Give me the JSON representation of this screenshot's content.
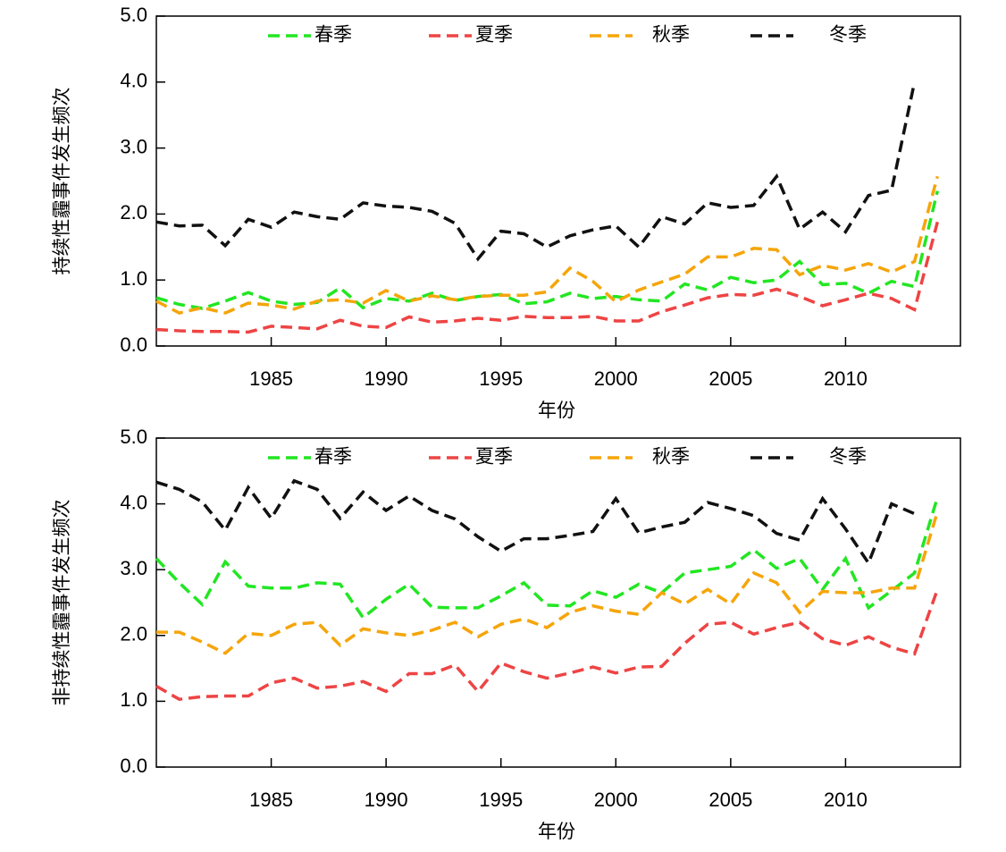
{
  "chart_data": [
    {
      "type": "line",
      "ylabel": "持续性霾事件发生频次",
      "xlabel": "年份",
      "x": [
        1980,
        1981,
        1982,
        1983,
        1984,
        1985,
        1986,
        1987,
        1988,
        1989,
        1990,
        1991,
        1992,
        1993,
        1994,
        1995,
        1996,
        1997,
        1998,
        1999,
        2000,
        2001,
        2002,
        2003,
        2004,
        2005,
        2006,
        2007,
        2008,
        2009,
        2010,
        2011,
        2012,
        2013,
        2014
      ],
      "xlim": [
        1980,
        2015
      ],
      "xticks": [
        1985,
        1990,
        1995,
        2000,
        2005,
        2010
      ],
      "ylim": [
        0,
        5
      ],
      "yticks": [
        {
          "value": 0,
          "label": "0.0"
        },
        {
          "value": 1,
          "label": "1.0"
        },
        {
          "value": 2,
          "label": "2.0"
        },
        {
          "value": 3,
          "label": "3.0"
        },
        {
          "value": 4,
          "label": "4.0"
        },
        {
          "value": 5,
          "label": "5.0"
        }
      ],
      "grid": false,
      "legend": "top",
      "series": [
        {
          "name": "春季",
          "color": "#22e622",
          "values": [
            0.73,
            0.63,
            0.57,
            0.68,
            0.81,
            0.68,
            0.63,
            0.66,
            0.88,
            0.58,
            0.72,
            0.68,
            0.8,
            0.69,
            0.75,
            0.78,
            0.64,
            0.67,
            0.8,
            0.72,
            0.75,
            0.7,
            0.68,
            0.94,
            0.85,
            1.04,
            0.96,
            1.0,
            1.28,
            0.93,
            0.95,
            0.8,
            0.98,
            0.9,
            2.35
          ]
        },
        {
          "name": "夏季",
          "color": "#ee4444",
          "values": [
            0.25,
            0.23,
            0.22,
            0.22,
            0.21,
            0.3,
            0.28,
            0.26,
            0.39,
            0.3,
            0.28,
            0.44,
            0.36,
            0.38,
            0.42,
            0.39,
            0.45,
            0.43,
            0.43,
            0.45,
            0.38,
            0.38,
            0.52,
            0.62,
            0.73,
            0.78,
            0.77,
            0.86,
            0.75,
            0.61,
            0.7,
            0.8,
            0.72,
            0.55,
            1.88
          ]
        },
        {
          "name": "秋季",
          "color": "#f5a50a",
          "values": [
            0.68,
            0.5,
            0.58,
            0.5,
            0.65,
            0.62,
            0.56,
            0.68,
            0.7,
            0.65,
            0.84,
            0.68,
            0.76,
            0.7,
            0.75,
            0.77,
            0.77,
            0.82,
            1.18,
            0.98,
            0.67,
            0.85,
            0.97,
            1.09,
            1.35,
            1.35,
            1.48,
            1.46,
            1.08,
            1.22,
            1.15,
            1.25,
            1.12,
            1.28,
            2.57
          ]
        },
        {
          "name": "冬季",
          "color": "#111111",
          "values": [
            1.88,
            1.82,
            1.83,
            1.52,
            1.92,
            1.8,
            2.03,
            1.96,
            1.92,
            2.17,
            2.12,
            2.1,
            2.04,
            1.86,
            1.32,
            1.74,
            1.7,
            1.5,
            1.67,
            1.76,
            1.82,
            1.5,
            1.96,
            1.85,
            2.17,
            2.1,
            2.13,
            2.57,
            1.77,
            2.03,
            1.73,
            2.28,
            2.36,
            4.0,
            null
          ]
        }
      ]
    },
    {
      "type": "line",
      "ylabel": "非持续性霾事件发生频次",
      "xlabel": "年份",
      "x": [
        1980,
        1981,
        1982,
        1983,
        1984,
        1985,
        1986,
        1987,
        1988,
        1989,
        1990,
        1991,
        1992,
        1993,
        1994,
        1995,
        1996,
        1997,
        1998,
        1999,
        2000,
        2001,
        2002,
        2003,
        2004,
        2005,
        2006,
        2007,
        2008,
        2009,
        2010,
        2011,
        2012,
        2013,
        2014
      ],
      "xlim": [
        1980,
        2015
      ],
      "xticks": [
        1985,
        1990,
        1995,
        2000,
        2005,
        2010
      ],
      "ylim": [
        0,
        5
      ],
      "yticks": [
        {
          "value": 0,
          "label": "0.0"
        },
        {
          "value": 1,
          "label": "1.0"
        },
        {
          "value": 2,
          "label": "2.0"
        },
        {
          "value": 3,
          "label": "3.0"
        },
        {
          "value": 4,
          "label": "4.0"
        },
        {
          "value": 5,
          "label": "5.0"
        }
      ],
      "grid": false,
      "legend": "top",
      "series": [
        {
          "name": "春季",
          "color": "#22e622",
          "values": [
            3.17,
            2.8,
            2.47,
            3.12,
            2.75,
            2.72,
            2.72,
            2.8,
            2.78,
            2.27,
            2.55,
            2.78,
            2.43,
            2.42,
            2.42,
            2.6,
            2.8,
            2.46,
            2.45,
            2.68,
            2.58,
            2.78,
            2.65,
            2.95,
            3.0,
            3.05,
            3.3,
            3.02,
            3.17,
            2.7,
            3.17,
            2.42,
            2.68,
            2.95,
            4.1
          ]
        },
        {
          "name": "夏季",
          "color": "#ee4444",
          "values": [
            1.23,
            1.03,
            1.07,
            1.08,
            1.08,
            1.28,
            1.35,
            1.2,
            1.23,
            1.3,
            1.15,
            1.42,
            1.42,
            1.55,
            1.15,
            1.58,
            1.45,
            1.35,
            1.43,
            1.52,
            1.43,
            1.52,
            1.53,
            1.88,
            2.17,
            2.2,
            2.02,
            2.12,
            2.2,
            1.95,
            1.85,
            1.98,
            1.82,
            1.72,
            2.7
          ]
        },
        {
          "name": "秋季",
          "color": "#f5a50a",
          "values": [
            2.05,
            2.05,
            1.9,
            1.73,
            2.03,
            2.0,
            2.17,
            2.2,
            1.85,
            2.1,
            2.04,
            2.0,
            2.08,
            2.2,
            1.98,
            2.17,
            2.25,
            2.12,
            2.35,
            2.45,
            2.37,
            2.32,
            2.65,
            2.48,
            2.7,
            2.48,
            2.95,
            2.8,
            2.35,
            2.67,
            2.65,
            2.65,
            2.72,
            2.72,
            3.88
          ]
        },
        {
          "name": "冬季",
          "color": "#111111",
          "values": [
            4.33,
            4.22,
            4.03,
            3.6,
            4.25,
            3.78,
            4.35,
            4.22,
            3.78,
            4.18,
            3.9,
            4.12,
            3.9,
            3.77,
            3.5,
            3.28,
            3.47,
            3.47,
            3.52,
            3.58,
            4.08,
            3.56,
            3.65,
            3.72,
            4.02,
            3.93,
            3.82,
            3.55,
            3.45,
            4.08,
            3.62,
            3.1,
            4.0,
            3.85,
            null
          ]
        }
      ]
    }
  ]
}
